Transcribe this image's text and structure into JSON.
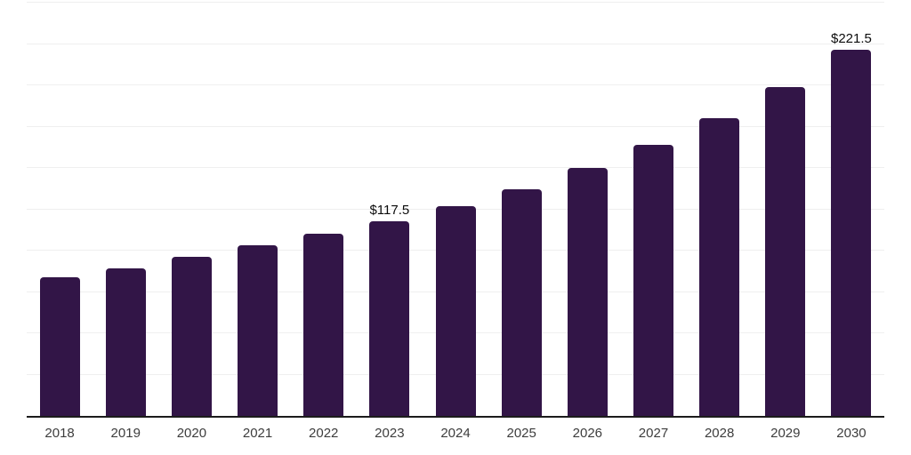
{
  "chart_data": {
    "type": "bar",
    "title": "",
    "xlabel": "",
    "ylabel": "",
    "legend": "none",
    "grid": "horizontal",
    "ylim": [
      0,
      250
    ],
    "grid_step": 25,
    "y_axis_tick_labels_visible": false,
    "categories": [
      "2018",
      "2019",
      "2020",
      "2021",
      "2022",
      "2023",
      "2024",
      "2025",
      "2026",
      "2027",
      "2028",
      "2029",
      "2030"
    ],
    "values": [
      84,
      89.5,
      96,
      103,
      110,
      117.5,
      127,
      137,
      150,
      164,
      180,
      199,
      221.5
    ],
    "data_labels": [
      null,
      null,
      null,
      null,
      null,
      "$117.5",
      null,
      null,
      null,
      null,
      null,
      null,
      "$221.5"
    ],
    "colors": {
      "bar": "#321547",
      "axis": "#1c1c1c",
      "gridline": "#efefef",
      "tick_label": "#3d3d3d",
      "data_label": "#0b0b0b",
      "background": "#ffffff"
    }
  }
}
